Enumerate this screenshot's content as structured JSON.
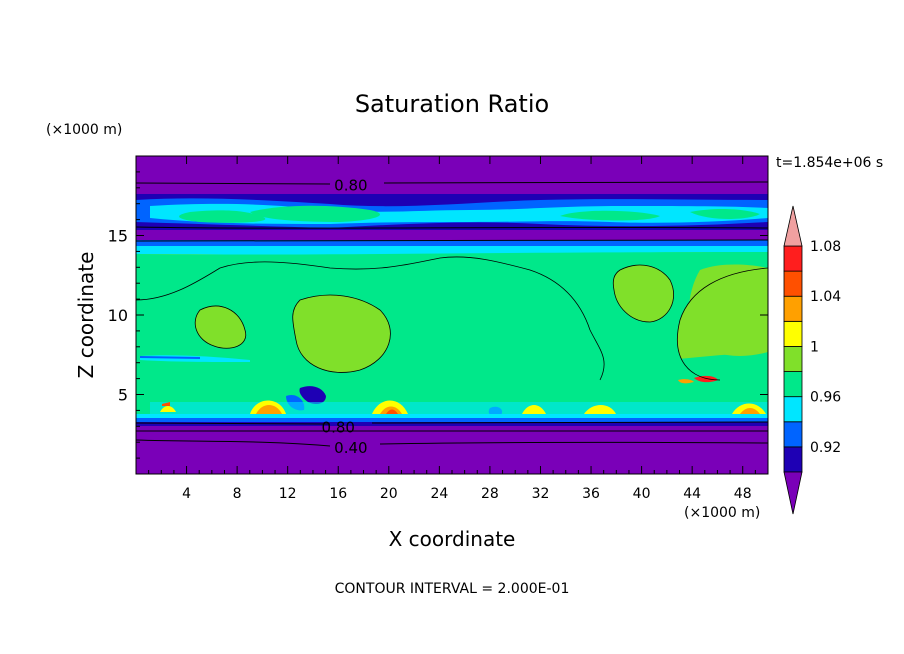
{
  "chart_data": {
    "type": "heatmap",
    "title": "Saturation Ratio",
    "xlabel": "X coordinate",
    "ylabel": "Z coordinate",
    "x_unit": "(×1000 m)",
    "y_unit": "(×1000 m)",
    "xlim": [
      0,
      50
    ],
    "ylim": [
      0,
      20
    ],
    "x_ticks": [
      4,
      8,
      12,
      16,
      20,
      24,
      28,
      32,
      36,
      40,
      44,
      48
    ],
    "y_ticks": [
      5,
      10,
      15
    ],
    "time_label": "t=1.854e+06 s",
    "footer": "CONTOUR INTERVAL = 2.000E-01",
    "contour_labels": [
      {
        "text": "0.80",
        "x": 17,
        "z": 18.2
      },
      {
        "text": "0.80",
        "x": 16,
        "z": 3.0
      },
      {
        "text": "0.40",
        "x": 17,
        "z": 1.7
      }
    ],
    "colorbar": {
      "levels": [
        0.92,
        0.96,
        1.0,
        1.04,
        1.08
      ],
      "tick_labels": [
        "0.92",
        "0.96",
        "1",
        "1.04",
        "1.08"
      ],
      "colors": [
        "#7a00b8",
        "#1e00b4",
        "#0064ff",
        "#00e6ff",
        "#00e88a",
        "#80e02a",
        "#ffff00",
        "#ffa000",
        "#ff5000",
        "#ff1e1e",
        "#f0a0a0"
      ]
    }
  }
}
